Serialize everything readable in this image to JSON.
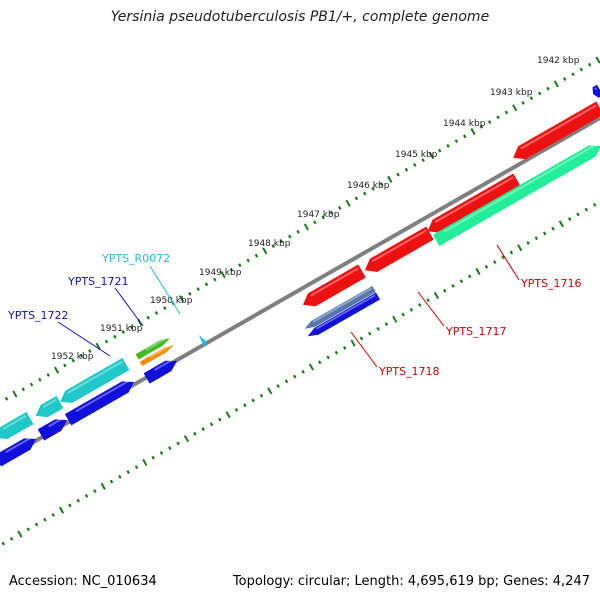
{
  "title": "Yersinia pseudotuberculosis PB1/+, complete genome",
  "footer": {
    "accession": "Accession: NC_010634",
    "summary": "Topology: circular; Length: 4,695,619 bp; Genes: 4,247"
  },
  "colors": {
    "backbone": "#808080",
    "tick": "#1a7a1a",
    "red": "#ee1111",
    "teal": "#20c8c8",
    "mint": "#22ee99",
    "blue": "#1010dd",
    "steel": "#5577aa",
    "green": "#44bb22",
    "orange": "#ff8800",
    "cyan": "#22bbee",
    "label_blue": "#1111aa",
    "label_red": "#cc0000",
    "label_cyan": "#22bbdd"
  },
  "kbp_ticks": [
    "1942 kbp",
    "1943 kbp",
    "1944 kbp",
    "1945 kbp",
    "1946 kbp",
    "1947 kbp",
    "1948 kbp",
    "1949 kbp",
    "1950 kbp",
    "1951 kbp",
    "1952 kbp"
  ],
  "gene_labels": [
    {
      "text": "YPTS_R0072",
      "color": "label_cyan"
    },
    {
      "text": "YPTS_1721",
      "color": "label_blue"
    },
    {
      "text": "YPTS_1722",
      "color": "label_blue"
    },
    {
      "text": "YPTS_1716",
      "color": "label_red"
    },
    {
      "text": "YPTS_1717",
      "color": "label_red"
    },
    {
      "text": "YPTS_1718",
      "color": "label_red"
    }
  ]
}
